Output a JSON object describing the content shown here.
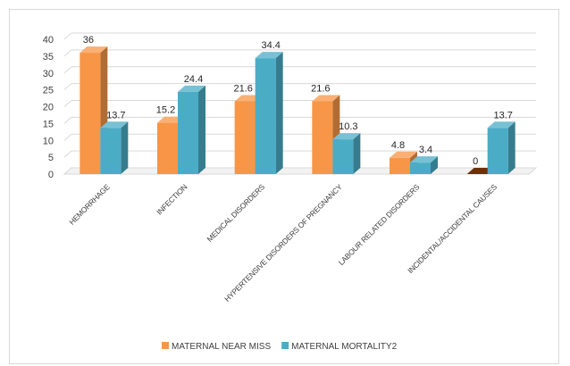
{
  "chart_data": {
    "type": "bar",
    "categories": [
      "HEMORRHAGE",
      "INFECTION",
      "MEDICAL DISORDERS",
      "HYPERTENSIVE DISORDERS OF PREGNANCY",
      "LABOUR RELATED DISORDERS",
      "INCIDENTAL/ACCIDENTAL CAUSES"
    ],
    "series": [
      {
        "name": "MATERNAL NEAR MISS",
        "values": [
          36,
          15.2,
          21.6,
          21.6,
          4.8,
          0
        ],
        "labels": [
          "36",
          "15.2",
          "21.6",
          "21.6",
          "4.8",
          "0"
        ],
        "color": "#f79646"
      },
      {
        "name": "MATERNAL MORTALITY2",
        "values": [
          13.7,
          24.4,
          34.4,
          10.3,
          3.4,
          13.7
        ],
        "labels": [
          "13.7",
          "24.4",
          "34.4",
          "10.3",
          "3.4",
          "13.7"
        ],
        "color": "#4bacc6"
      }
    ],
    "ylim": [
      0,
      40
    ],
    "yticks": [
      "0",
      "5",
      "10",
      "15",
      "20",
      "25",
      "30",
      "35",
      "40"
    ],
    "grid": true,
    "legend": "bottom",
    "style": "3d-column"
  }
}
